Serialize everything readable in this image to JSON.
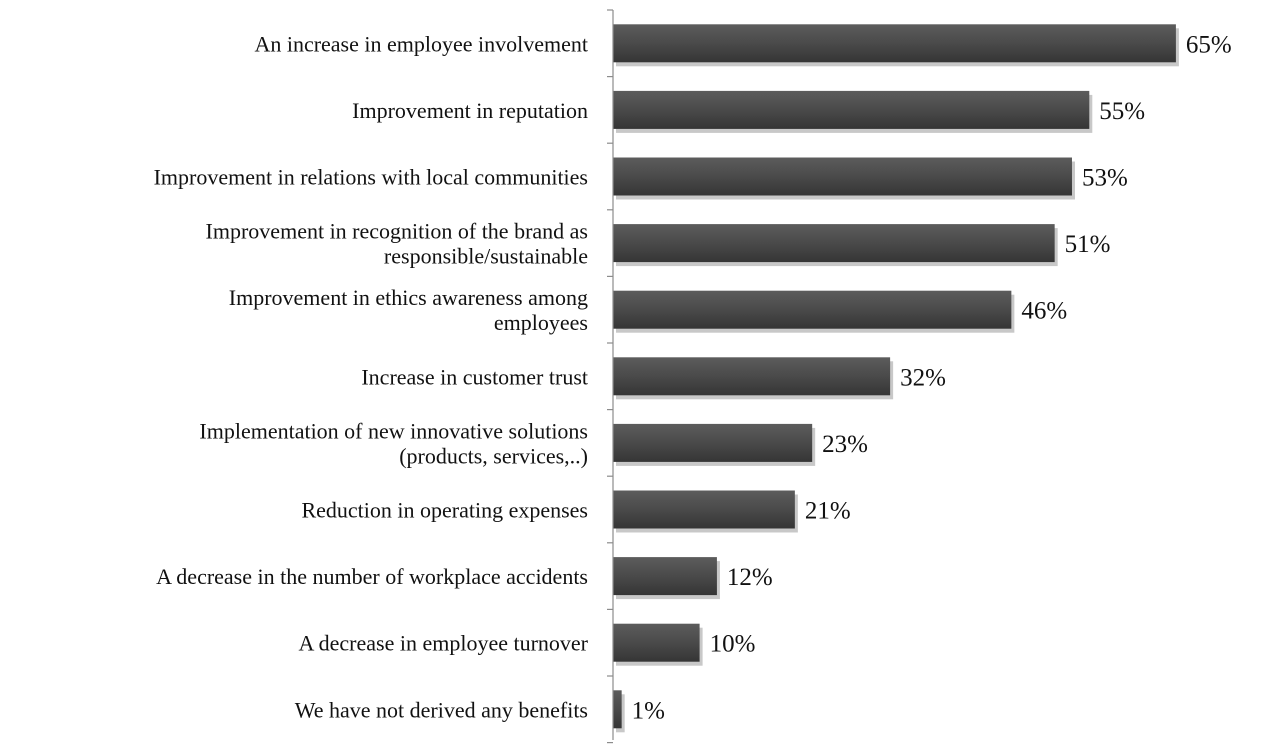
{
  "chart_data": {
    "type": "bar",
    "orientation": "horizontal",
    "title": "",
    "xlabel": "",
    "ylabel": "",
    "categories": [
      [
        "An increase in employee involvement"
      ],
      [
        "Improvement in reputation"
      ],
      [
        "Improvement in relations with local communities"
      ],
      [
        "Improvement in recognition of the brand as",
        "responsible/sustainable"
      ],
      [
        "Improvement in ethics awareness among",
        "employees"
      ],
      [
        "Increase in customer trust"
      ],
      [
        "Implementation of new innovative solutions",
        "(products, services,..)"
      ],
      [
        "Reduction in operating expenses"
      ],
      [
        "A decrease in the number of workplace accidents"
      ],
      [
        "A decrease in employee turnover"
      ],
      [
        "We have not derived any benefits"
      ]
    ],
    "values": [
      65,
      55,
      53,
      51,
      46,
      32,
      23,
      21,
      12,
      10,
      1
    ],
    "value_labels": [
      "65%",
      "55%",
      "53%",
      "51%",
      "46%",
      "32%",
      "23%",
      "21%",
      "12%",
      "10%",
      "1%"
    ],
    "xlim": [
      0,
      70
    ],
    "grid": false,
    "legend": "none",
    "bar_color": "#4a4a4a"
  }
}
